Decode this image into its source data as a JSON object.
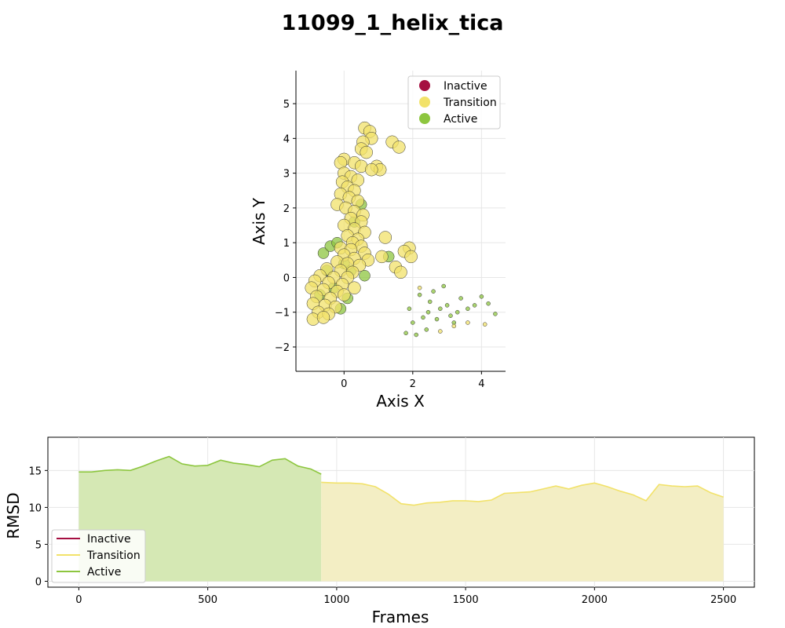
{
  "title": "11099_1_helix_tica",
  "colors": {
    "Inactive": "#a50f41",
    "Transition": "#f2e26a",
    "Active": "#8dc63f",
    "grid": "#e6e6e6"
  },
  "chart_data": [
    {
      "type": "scatter",
      "xlabel": "Axis X",
      "ylabel": "Axis Y",
      "xlim": [
        -1.4,
        4.7
      ],
      "ylim": [
        -2.7,
        5.95
      ],
      "xticks": [
        0,
        2,
        4
      ],
      "yticks": [
        -2,
        -1,
        0,
        1,
        2,
        3,
        4,
        5
      ],
      "grid": true,
      "legend": {
        "placement": "top-right",
        "entries": [
          "Inactive",
          "Transition",
          "Active"
        ]
      },
      "series": [
        {
          "name": "Transition",
          "points": [
            [
              0.6,
              4.3
            ],
            [
              0.75,
              4.2
            ],
            [
              0.8,
              4.0
            ],
            [
              0.55,
              3.9
            ],
            [
              0.5,
              3.7
            ],
            [
              0.65,
              3.6
            ],
            [
              1.4,
              3.9
            ],
            [
              1.6,
              3.75
            ],
            [
              0.0,
              3.4
            ],
            [
              -0.1,
              3.3
            ],
            [
              0.3,
              3.3
            ],
            [
              0.5,
              3.2
            ],
            [
              0.95,
              3.2
            ],
            [
              1.05,
              3.1
            ],
            [
              0.8,
              3.1
            ],
            [
              0.0,
              3.0
            ],
            [
              0.2,
              2.9
            ],
            [
              0.4,
              2.8
            ],
            [
              -0.05,
              2.75
            ],
            [
              0.1,
              2.6
            ],
            [
              0.3,
              2.5
            ],
            [
              -0.1,
              2.4
            ],
            [
              0.15,
              2.3
            ],
            [
              0.4,
              2.2
            ],
            [
              -0.2,
              2.1
            ],
            [
              0.05,
              2.0
            ],
            [
              0.3,
              1.9
            ],
            [
              0.55,
              1.8
            ],
            [
              0.2,
              1.7
            ],
            [
              0.5,
              1.6
            ],
            [
              0.0,
              1.5
            ],
            [
              0.3,
              1.4
            ],
            [
              0.6,
              1.3
            ],
            [
              0.1,
              1.2
            ],
            [
              0.4,
              1.1
            ],
            [
              1.2,
              1.15
            ],
            [
              0.25,
              1.0
            ],
            [
              0.5,
              0.9
            ],
            [
              -0.1,
              0.85
            ],
            [
              0.2,
              0.8
            ],
            [
              0.6,
              0.7
            ],
            [
              1.9,
              0.85
            ],
            [
              1.75,
              0.75
            ],
            [
              1.95,
              0.6
            ],
            [
              1.1,
              0.6
            ],
            [
              0.0,
              0.65
            ],
            [
              0.3,
              0.55
            ],
            [
              0.7,
              0.5
            ],
            [
              -0.2,
              0.45
            ],
            [
              0.1,
              0.4
            ],
            [
              0.45,
              0.35
            ],
            [
              1.5,
              0.3
            ],
            [
              1.65,
              0.15
            ],
            [
              -0.5,
              0.25
            ],
            [
              -0.1,
              0.2
            ],
            [
              0.25,
              0.15
            ],
            [
              -0.7,
              0.05
            ],
            [
              -0.3,
              0.0
            ],
            [
              0.1,
              0.0
            ],
            [
              -0.85,
              -0.1
            ],
            [
              -0.45,
              -0.15
            ],
            [
              -0.05,
              -0.2
            ],
            [
              -0.95,
              -0.3
            ],
            [
              -0.6,
              -0.35
            ],
            [
              -0.2,
              -0.4
            ],
            [
              -0.8,
              -0.55
            ],
            [
              -0.4,
              -0.6
            ],
            [
              -0.9,
              -0.75
            ],
            [
              -0.55,
              -0.8
            ],
            [
              -0.25,
              -0.85
            ],
            [
              -0.75,
              -1.0
            ],
            [
              -0.45,
              -1.05
            ],
            [
              -0.9,
              -1.2
            ],
            [
              -0.6,
              -1.15
            ],
            [
              0.0,
              -0.5
            ],
            [
              0.3,
              -0.3
            ],
            [
              2.8,
              -1.55
            ],
            [
              3.2,
              -1.4
            ],
            [
              3.6,
              -1.3
            ],
            [
              4.1,
              -1.35
            ],
            [
              2.2,
              -0.3
            ]
          ]
        },
        {
          "name": "Active",
          "points": [
            [
              -0.6,
              0.7
            ],
            [
              -0.4,
              0.9
            ],
            [
              -0.2,
              1.0
            ],
            [
              0.0,
              0.4
            ],
            [
              0.2,
              0.2
            ],
            [
              -0.5,
              0.2
            ],
            [
              -0.3,
              -0.3
            ],
            [
              -0.7,
              -0.5
            ],
            [
              0.1,
              -0.6
            ],
            [
              -0.1,
              -0.9
            ],
            [
              0.6,
              0.05
            ],
            [
              1.3,
              0.6
            ],
            [
              0.5,
              2.1
            ],
            [
              0.3,
              1.6
            ],
            [
              2.2,
              -0.5
            ],
            [
              2.5,
              -0.7
            ],
            [
              2.8,
              -0.9
            ],
            [
              3.1,
              -1.1
            ],
            [
              2.0,
              -1.3
            ],
            [
              2.4,
              -1.5
            ],
            [
              2.7,
              -1.2
            ],
            [
              3.0,
              -0.8
            ],
            [
              3.3,
              -1.0
            ],
            [
              3.6,
              -0.9
            ],
            [
              3.8,
              -0.8
            ],
            [
              4.0,
              -0.55
            ],
            [
              4.2,
              -0.75
            ],
            [
              4.4,
              -1.05
            ],
            [
              2.3,
              -1.15
            ],
            [
              2.6,
              -0.4
            ],
            [
              2.9,
              -0.25
            ],
            [
              3.4,
              -0.6
            ],
            [
              1.8,
              -1.6
            ],
            [
              2.1,
              -1.65
            ],
            [
              3.2,
              -1.3
            ],
            [
              1.9,
              -0.9
            ],
            [
              2.45,
              -1.0
            ]
          ]
        }
      ]
    },
    {
      "type": "line",
      "xlabel": "Frames",
      "ylabel": "RMSD",
      "xlim": [
        -120,
        2620
      ],
      "ylim": [
        -0.8,
        19.5
      ],
      "xticks": [
        0,
        500,
        1000,
        1500,
        2000,
        2500
      ],
      "yticks": [
        0,
        5,
        10,
        15
      ],
      "grid": true,
      "legend": {
        "placement": "lower-left",
        "entries": [
          "Inactive",
          "Transition",
          "Active"
        ]
      },
      "segments": [
        {
          "state": "Active",
          "x": [
            0,
            50,
            100,
            150,
            200,
            250,
            300,
            350,
            400,
            450,
            500,
            550,
            600,
            650,
            700,
            750,
            800,
            850,
            900,
            940
          ],
          "y": [
            14.8,
            14.8,
            15.0,
            15.1,
            15.0,
            15.6,
            16.3,
            16.9,
            15.9,
            15.6,
            15.7,
            16.4,
            16.0,
            15.8,
            15.5,
            16.4,
            16.6,
            15.6,
            15.2,
            14.5
          ]
        },
        {
          "state": "Transition",
          "x": [
            940,
            1000,
            1050,
            1100,
            1150,
            1200,
            1250,
            1300,
            1350,
            1400,
            1450,
            1500,
            1550,
            1600,
            1650,
            1700,
            1750,
            1800,
            1850,
            1900,
            1950,
            2000,
            2050,
            2100,
            2150,
            2200,
            2250,
            2300,
            2350,
            2400,
            2450,
            2500
          ],
          "y": [
            13.4,
            13.3,
            13.3,
            13.2,
            12.8,
            11.8,
            10.5,
            10.3,
            10.6,
            10.7,
            10.9,
            10.9,
            10.8,
            11.0,
            11.9,
            12.0,
            12.1,
            12.5,
            12.9,
            12.5,
            13.0,
            13.3,
            12.8,
            12.2,
            11.7,
            10.9,
            13.1,
            12.9,
            12.8,
            12.9,
            12.0,
            11.4
          ]
        }
      ]
    }
  ]
}
